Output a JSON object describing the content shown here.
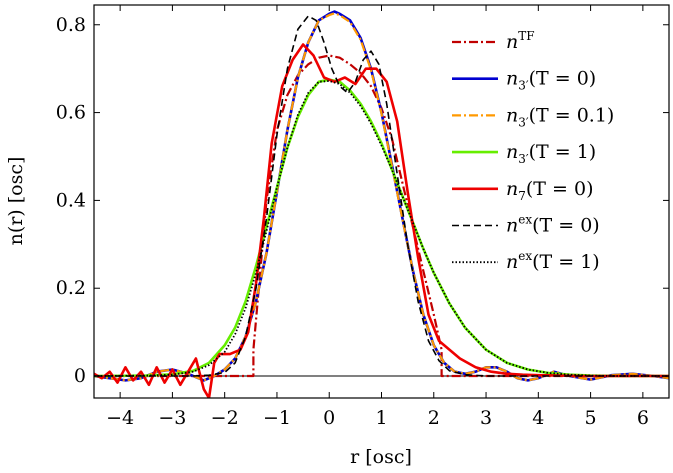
{
  "chart_data": {
    "type": "line",
    "xlabel": "r [osc]",
    "ylabel": "n(r) [osc]",
    "xlim": [
      -4.5,
      6.5
    ],
    "ylim": [
      -0.05,
      0.845
    ],
    "xticks": [
      -4,
      -3,
      -2,
      -1,
      0,
      1,
      2,
      3,
      4,
      5,
      6
    ],
    "xtick_labels": [
      "−4",
      "−3",
      "−2",
      "−1",
      "0",
      "1",
      "2",
      "3",
      "4",
      "5",
      "6"
    ],
    "yticks": [
      0,
      0.2,
      0.4,
      0.6,
      0.8
    ],
    "ytick_labels": [
      "0",
      "0.2",
      "0.4",
      "0.6",
      "0.8"
    ],
    "legend_position": "top-right",
    "series": [
      {
        "name": "n^TF",
        "label_main": "n",
        "label_sup": "TF",
        "label_sub": "",
        "label_rest": "",
        "color": "#c00000",
        "dash": "dashdot",
        "x": [
          -4.5,
          -1.45,
          -1.45,
          -1.2,
          -1.0,
          -0.8,
          -0.6,
          -0.4,
          -0.2,
          0.0,
          0.2,
          0.4,
          0.6,
          0.8,
          1.0,
          1.2,
          1.4,
          1.6,
          1.8,
          2.0,
          2.15,
          2.15,
          6.5
        ],
        "y": [
          0.0,
          0.0,
          0.06,
          0.4,
          0.56,
          0.64,
          0.685,
          0.71,
          0.725,
          0.73,
          0.725,
          0.71,
          0.69,
          0.66,
          0.61,
          0.54,
          0.44,
          0.34,
          0.24,
          0.14,
          0.06,
          0.0,
          0.0
        ]
      },
      {
        "name": "n_3'(T=0)",
        "label_main": "n",
        "label_sup": "",
        "label_sub": "3′",
        "label_rest": "(T = 0)",
        "color": "#0000d0",
        "dash": "solid",
        "x": [
          -4.5,
          -4.2,
          -3.9,
          -3.6,
          -3.3,
          -3.0,
          -2.7,
          -2.4,
          -2.2,
          -2.0,
          -1.8,
          -1.6,
          -1.4,
          -1.2,
          -1.0,
          -0.8,
          -0.6,
          -0.4,
          -0.2,
          0.0,
          0.1,
          0.2,
          0.4,
          0.6,
          0.8,
          1.0,
          1.2,
          1.4,
          1.6,
          1.8,
          2.0,
          2.2,
          2.4,
          2.6,
          2.8,
          3.0,
          3.2,
          3.4,
          3.6,
          3.8,
          4.0,
          4.3,
          4.6,
          5.0,
          5.4,
          5.8,
          6.2,
          6.5
        ],
        "y": [
          0.0,
          -0.005,
          -0.01,
          -0.005,
          0.01,
          0.015,
          0.005,
          -0.01,
          0.0,
          0.015,
          0.04,
          0.09,
          0.17,
          0.28,
          0.42,
          0.56,
          0.68,
          0.76,
          0.81,
          0.825,
          0.83,
          0.825,
          0.81,
          0.77,
          0.7,
          0.6,
          0.48,
          0.36,
          0.24,
          0.14,
          0.07,
          0.03,
          0.01,
          0.005,
          0.01,
          0.02,
          0.02,
          0.01,
          -0.005,
          -0.01,
          -0.005,
          0.01,
          0.0,
          -0.008,
          0.002,
          0.005,
          0.0,
          -0.005
        ]
      },
      {
        "name": "n_3'(T=0.1)",
        "label_main": "n",
        "label_sup": "",
        "label_sub": "3′",
        "label_rest": "(T = 0.1)",
        "color": "#ff9900",
        "dash": "dashdot",
        "x": [
          -4.5,
          -4.2,
          -3.9,
          -3.6,
          -3.3,
          -3.0,
          -2.7,
          -2.4,
          -2.2,
          -2.0,
          -1.8,
          -1.6,
          -1.4,
          -1.2,
          -1.0,
          -0.8,
          -0.6,
          -0.4,
          -0.2,
          0.0,
          0.1,
          0.2,
          0.4,
          0.6,
          0.8,
          1.0,
          1.2,
          1.4,
          1.6,
          1.8,
          2.0,
          2.2,
          2.4,
          2.6,
          2.8,
          3.0,
          3.2,
          3.4,
          3.6,
          3.8,
          4.0,
          4.3,
          4.6,
          5.0,
          5.4,
          5.8,
          6.2,
          6.5
        ],
        "y": [
          0.0,
          -0.005,
          -0.01,
          -0.005,
          0.01,
          0.015,
          0.005,
          -0.01,
          0.0,
          0.015,
          0.04,
          0.09,
          0.17,
          0.28,
          0.42,
          0.56,
          0.68,
          0.76,
          0.81,
          0.822,
          0.826,
          0.822,
          0.806,
          0.766,
          0.697,
          0.598,
          0.478,
          0.358,
          0.24,
          0.14,
          0.07,
          0.03,
          0.01,
          0.005,
          0.01,
          0.02,
          0.02,
          0.01,
          -0.005,
          -0.01,
          -0.005,
          0.01,
          0.0,
          -0.008,
          0.002,
          0.005,
          0.0,
          -0.005
        ]
      },
      {
        "name": "n_3'(T=1)",
        "label_main": "n",
        "label_sup": "",
        "label_sub": "3′",
        "label_rest": "(T = 1)",
        "color": "#66ee00",
        "dash": "solid",
        "x": [
          -4.5,
          -3.5,
          -3.0,
          -2.6,
          -2.3,
          -2.0,
          -1.8,
          -1.6,
          -1.4,
          -1.2,
          -1.0,
          -0.8,
          -0.6,
          -0.4,
          -0.2,
          0.0,
          0.2,
          0.4,
          0.6,
          0.8,
          1.0,
          1.2,
          1.4,
          1.6,
          1.8,
          2.0,
          2.3,
          2.6,
          3.0,
          3.4,
          3.8,
          4.2,
          4.6,
          5.0,
          5.5,
          6.0,
          6.5
        ],
        "y": [
          0.0,
          0.001,
          0.004,
          0.012,
          0.03,
          0.07,
          0.11,
          0.17,
          0.25,
          0.34,
          0.43,
          0.52,
          0.59,
          0.64,
          0.67,
          0.675,
          0.67,
          0.65,
          0.62,
          0.58,
          0.53,
          0.47,
          0.41,
          0.35,
          0.29,
          0.235,
          0.165,
          0.11,
          0.06,
          0.03,
          0.015,
          0.007,
          0.003,
          0.001,
          0.0,
          0.0,
          0.0
        ]
      },
      {
        "name": "n_7(T=0)",
        "label_main": "n",
        "label_sup": "",
        "label_sub": "7",
        "label_rest": "(T = 0)",
        "color": "#ee0000",
        "dash": "solid",
        "x": [
          -4.5,
          -4.35,
          -4.2,
          -4.05,
          -3.9,
          -3.75,
          -3.6,
          -3.45,
          -3.3,
          -3.15,
          -3.0,
          -2.85,
          -2.7,
          -2.55,
          -2.4,
          -2.3,
          -2.2,
          -2.1,
          -1.9,
          -1.7,
          -1.55,
          -1.4,
          -1.25,
          -1.1,
          -0.9,
          -0.7,
          -0.5,
          -0.3,
          -0.1,
          0.1,
          0.3,
          0.5,
          0.7,
          0.9,
          1.1,
          1.3,
          1.5,
          1.7,
          1.9,
          2.1,
          2.3,
          2.5,
          2.8,
          3.1,
          3.4,
          3.7,
          4.0,
          4.4,
          4.8,
          5.2,
          5.6,
          6.0,
          6.5
        ],
        "y": [
          0.005,
          -0.005,
          0.01,
          -0.015,
          0.02,
          -0.01,
          0.01,
          -0.02,
          0.02,
          -0.015,
          0.015,
          -0.02,
          0.01,
          0.04,
          -0.03,
          -0.05,
          0.03,
          0.05,
          0.05,
          0.06,
          0.1,
          0.21,
          0.36,
          0.53,
          0.66,
          0.72,
          0.755,
          0.73,
          0.68,
          0.67,
          0.68,
          0.665,
          0.7,
          0.7,
          0.67,
          0.58,
          0.42,
          0.27,
          0.14,
          0.08,
          0.06,
          0.04,
          0.02,
          0.01,
          0.005,
          0.003,
          0.002,
          0.001,
          0.0,
          0.0,
          0.0,
          0.0,
          0.0
        ]
      },
      {
        "name": "n^ex(T=0)",
        "label_main": "n",
        "label_sup": "ex",
        "label_sub": "",
        "label_rest": "(T = 0)",
        "color": "#000000",
        "dash": "dashed",
        "x": [
          -4.5,
          -3.5,
          -2.6,
          -2.3,
          -2.0,
          -1.8,
          -1.6,
          -1.4,
          -1.2,
          -1.0,
          -0.8,
          -0.6,
          -0.4,
          -0.25,
          -0.1,
          0.05,
          0.2,
          0.35,
          0.5,
          0.65,
          0.8,
          0.95,
          1.1,
          1.3,
          1.5,
          1.7,
          1.9,
          2.1,
          2.3,
          2.6,
          3.0,
          3.5,
          4.0,
          5.0,
          6.5
        ],
        "y": [
          0.0,
          0.0,
          0.0,
          0.002,
          0.008,
          0.03,
          0.09,
          0.2,
          0.36,
          0.55,
          0.7,
          0.79,
          0.82,
          0.81,
          0.76,
          0.7,
          0.66,
          0.645,
          0.67,
          0.72,
          0.74,
          0.71,
          0.62,
          0.46,
          0.3,
          0.17,
          0.08,
          0.035,
          0.012,
          0.003,
          0.0,
          0.0,
          0.0,
          0.0,
          0.0
        ]
      },
      {
        "name": "n^ex(T=1)",
        "label_main": "n",
        "label_sup": "ex",
        "label_sub": "",
        "label_rest": "(T = 1)",
        "color": "#000000",
        "dash": "dotted",
        "x": [
          -4.5,
          -3.5,
          -3.0,
          -2.6,
          -2.3,
          -2.0,
          -1.8,
          -1.6,
          -1.4,
          -1.2,
          -1.0,
          -0.8,
          -0.6,
          -0.4,
          -0.2,
          0.0,
          0.2,
          0.4,
          0.6,
          0.8,
          1.0,
          1.2,
          1.4,
          1.6,
          1.8,
          2.0,
          2.3,
          2.6,
          3.0,
          3.4,
          3.8,
          4.2,
          4.6,
          5.0,
          5.5,
          6.0,
          6.5
        ],
        "y": [
          0.0,
          0.001,
          0.003,
          0.01,
          0.025,
          0.055,
          0.095,
          0.155,
          0.235,
          0.33,
          0.43,
          0.52,
          0.595,
          0.645,
          0.67,
          0.672,
          0.665,
          0.645,
          0.615,
          0.575,
          0.525,
          0.47,
          0.41,
          0.35,
          0.29,
          0.235,
          0.165,
          0.11,
          0.06,
          0.03,
          0.015,
          0.007,
          0.003,
          0.001,
          0.0,
          0.0,
          0.0
        ]
      }
    ]
  }
}
